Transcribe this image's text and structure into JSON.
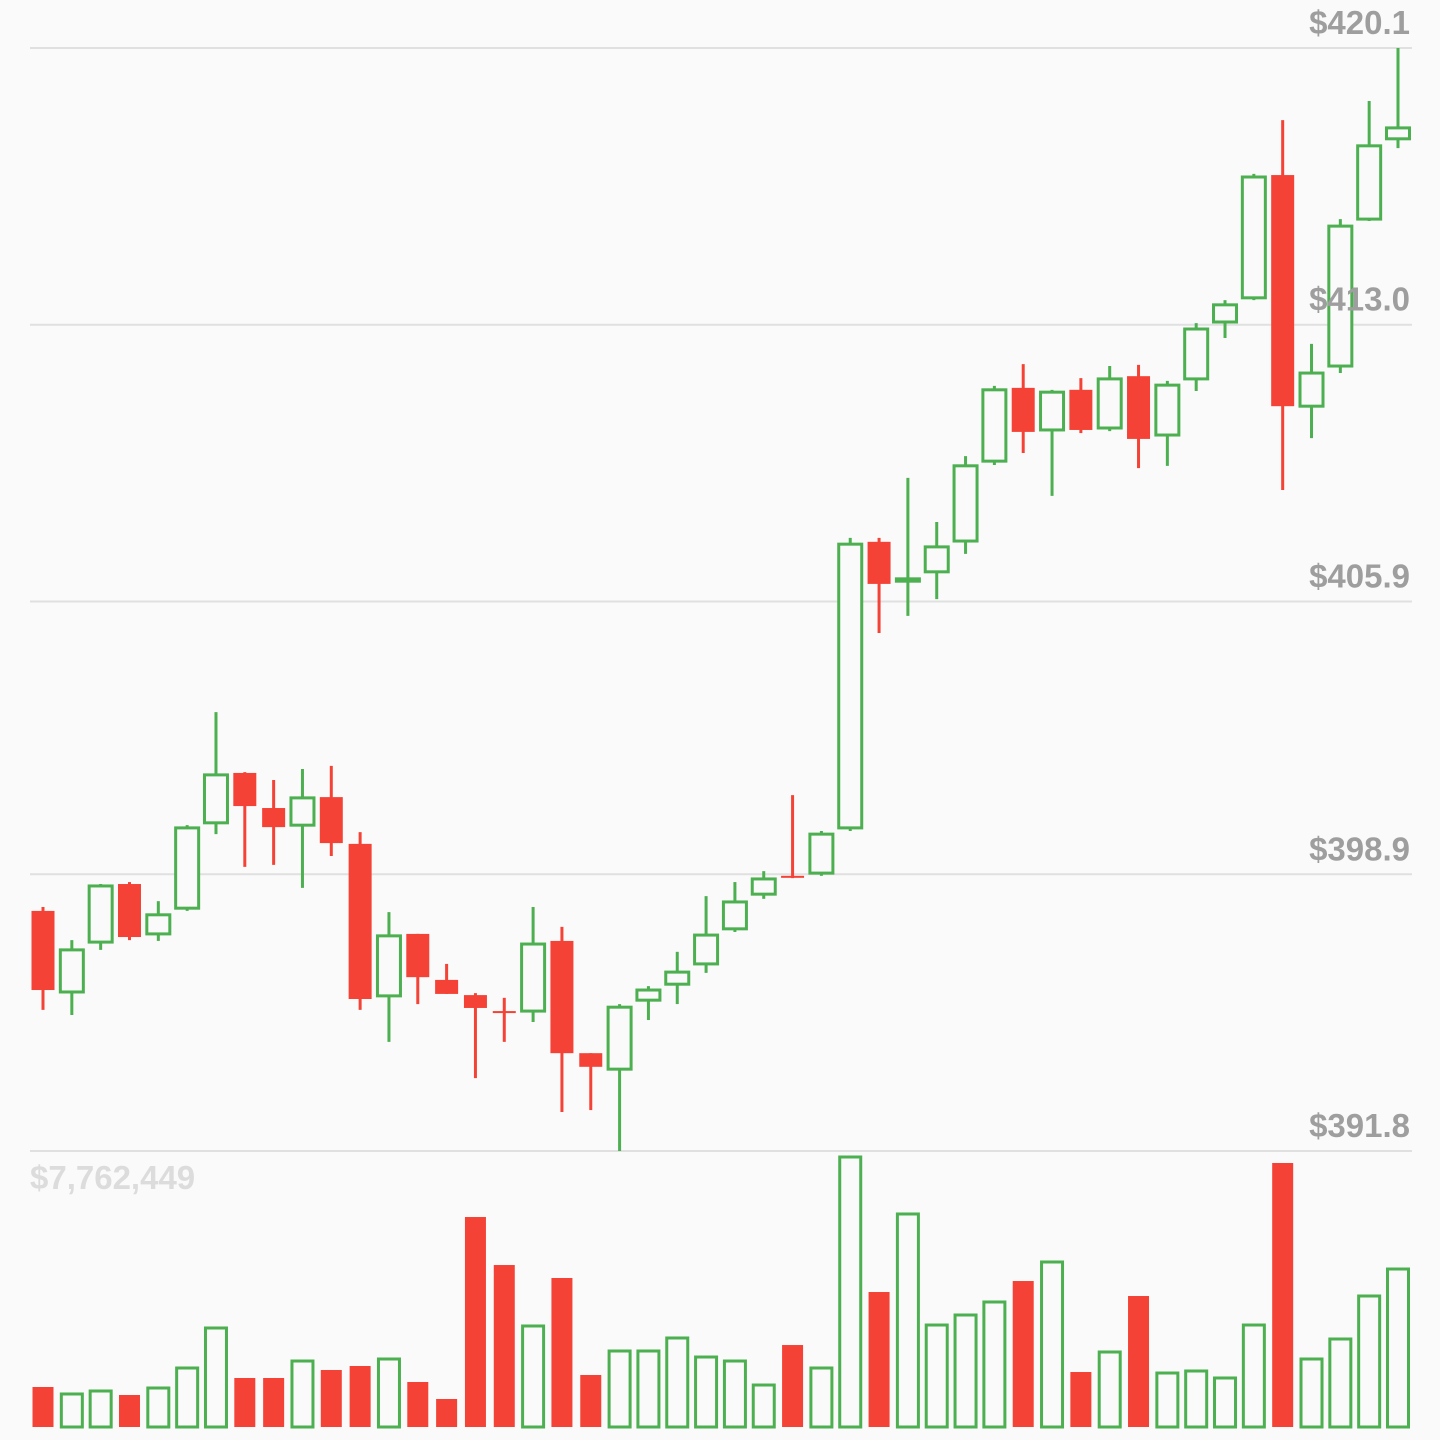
{
  "chart_data": {
    "type": "candlestick",
    "up_color": "#4caf50",
    "down_color": "#f44336",
    "grid": true,
    "ylim": [
      391.8,
      420.1
    ],
    "yticks": [
      {
        "value": 420.1,
        "label": "$420.1"
      },
      {
        "value": 413.0,
        "label": "$413.0"
      },
      {
        "value": 405.9,
        "label": "$405.9"
      },
      {
        "value": 398.9,
        "label": "$398.9"
      },
      {
        "value": 391.8,
        "label": "$391.8"
      }
    ],
    "volume_ylim": [
      0,
      7762449
    ],
    "volume_ticks": [
      {
        "value": 7762449,
        "label": "$7,762,449"
      }
    ],
    "open": [
      397.96,
      395.88,
      397.16,
      398.65,
      397.37,
      398.03,
      400.22,
      401.5,
      400.6,
      400.16,
      400.88,
      399.68,
      395.78,
      397.37,
      396.19,
      395.8,
      395.39,
      395.39,
      397.19,
      394.31,
      393.9,
      395.67,
      396.08,
      396.6,
      397.5,
      398.39,
      398.86,
      398.93,
      400.09,
      407.43,
      406.42,
      406.66,
      407.45,
      409.5,
      411.38,
      410.3,
      411.33,
      410.35,
      411.68,
      410.17,
      411.61,
      413.07,
      413.69,
      416.84,
      410.91,
      411.94,
      415.71,
      417.77
    ],
    "high": [
      398.06,
      397.21,
      398.65,
      398.7,
      398.21,
      400.16,
      403.06,
      401.52,
      401.32,
      401.6,
      401.68,
      399.98,
      397.93,
      397.37,
      396.6,
      395.85,
      395.73,
      398.06,
      397.55,
      394.31,
      395.57,
      396.03,
      396.91,
      398.34,
      398.7,
      398.98,
      400.93,
      400.01,
      407.53,
      407.53,
      409.07,
      407.94,
      409.63,
      411.43,
      411.99,
      411.33,
      411.63,
      411.94,
      411.97,
      411.56,
      413.04,
      413.63,
      416.87,
      418.25,
      412.51,
      415.71,
      418.74,
      420.1
    ],
    "low": [
      395.42,
      395.29,
      396.96,
      397.21,
      397.19,
      397.96,
      399.93,
      399.09,
      399.14,
      398.55,
      399.37,
      395.42,
      394.6,
      395.57,
      395.83,
      393.67,
      394.6,
      395.11,
      392.8,
      392.85,
      391.8,
      395.16,
      395.57,
      396.37,
      397.42,
      398.27,
      398.8,
      398.86,
      400.01,
      405.09,
      405.53,
      405.96,
      407.12,
      409.4,
      409.71,
      408.61,
      410.22,
      410.27,
      409.32,
      409.38,
      411.3,
      412.66,
      413.63,
      408.76,
      410.09,
      411.76,
      415.66,
      417.53
    ],
    "close": [
      395.93,
      396.96,
      398.6,
      397.29,
      397.86,
      400.09,
      401.45,
      400.65,
      400.11,
      400.86,
      399.7,
      395.7,
      397.32,
      396.26,
      395.83,
      395.47,
      395.34,
      397.11,
      394.31,
      393.96,
      395.49,
      395.93,
      396.39,
      397.34,
      398.19,
      398.78,
      398.83,
      399.93,
      407.37,
      406.35,
      406.48,
      407.3,
      409.38,
      411.33,
      410.25,
      411.27,
      410.3,
      411.61,
      410.07,
      411.45,
      412.89,
      413.51,
      416.79,
      410.91,
      411.76,
      415.53,
      417.59,
      418.05
    ],
    "volume": [
      1150000,
      949000,
      1035000,
      920000,
      1121000,
      1696000,
      2846000,
      1409000,
      1409000,
      1897000,
      1639000,
      1754000,
      1955000,
      1294000,
      805000,
      6037000,
      4657000,
      2904000,
      4284000,
      1495000,
      2185000,
      2185000,
      2559000,
      2012000,
      1897000,
      1207000,
      2357000,
      1696000,
      7762449,
      3881000,
      6124000,
      2932000,
      3220000,
      3594000,
      4197000,
      4744000,
      1581000,
      2156000,
      3766000,
      1552000,
      1610000,
      1409000,
      2932000,
      7590000,
      1955000,
      2530000,
      3766000,
      4542000
    ]
  }
}
